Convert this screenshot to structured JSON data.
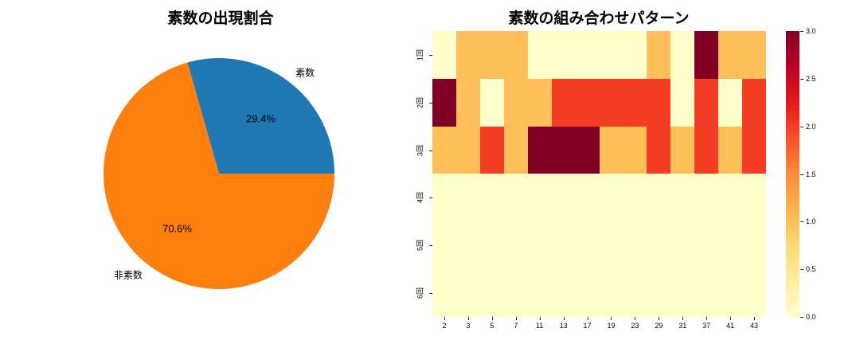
{
  "figure": {
    "background": "#ffffff"
  },
  "chart_data": [
    {
      "type": "pie",
      "title": "素数の出現割合",
      "labels": [
        "素数",
        "非素数"
      ],
      "values": [
        29.4,
        70.6
      ],
      "pct_labels": [
        "29.4%",
        "70.6%"
      ],
      "colors": [
        "#1f77b4",
        "#ff7f0e"
      ],
      "start_angle_deg": 0,
      "counterclockwise": true,
      "legend": "none",
      "label_radius": 1.1,
      "pct_radius": 0.6
    },
    {
      "type": "heatmap",
      "title": "素数の組み合わせパターン",
      "x_tick_labels": [
        "2",
        "3",
        "5",
        "7",
        "11",
        "13",
        "17",
        "19",
        "23",
        "29",
        "31",
        "37",
        "41",
        "43"
      ],
      "y_tick_labels": [
        "1回",
        "2回",
        "3回",
        "4回",
        "5回",
        "6回"
      ],
      "matrix": [
        [
          0,
          1,
          1,
          1,
          0,
          0,
          0,
          0,
          0,
          1,
          0,
          3,
          1,
          1
        ],
        [
          3,
          1,
          0,
          1,
          1,
          2,
          2,
          2,
          2,
          2,
          0,
          2,
          0,
          2
        ],
        [
          1,
          1,
          2,
          1,
          3,
          3,
          3,
          1,
          1,
          2,
          1,
          2,
          1,
          2
        ],
        [
          0,
          0,
          0,
          0,
          0,
          0,
          0,
          0,
          0,
          0,
          0,
          0,
          0,
          0
        ],
        [
          0,
          0,
          0,
          0,
          0,
          0,
          0,
          0,
          0,
          0,
          0,
          0,
          0,
          0
        ],
        [
          0,
          0,
          0,
          0,
          0,
          0,
          0,
          0,
          0,
          0,
          0,
          0,
          0,
          0
        ]
      ],
      "vmin": 0.0,
      "vmax": 3.0,
      "colormap": "YlOrRd",
      "colormap_stops": [
        "#ffffcc",
        "#ffeda0",
        "#fed976",
        "#feb24c",
        "#fd8d3c",
        "#fc4e2a",
        "#e31a1c",
        "#bd0026",
        "#800026"
      ],
      "value_colors": {
        "0": "#ffffcc",
        "1": "#febf5a",
        "2": "#f43d25",
        "3": "#800026"
      },
      "colorbar_ticks": [
        0.0,
        0.5,
        1.0,
        1.5,
        2.0,
        2.5,
        3.0
      ],
      "colorbar_position": "right",
      "grid": false
    }
  ]
}
